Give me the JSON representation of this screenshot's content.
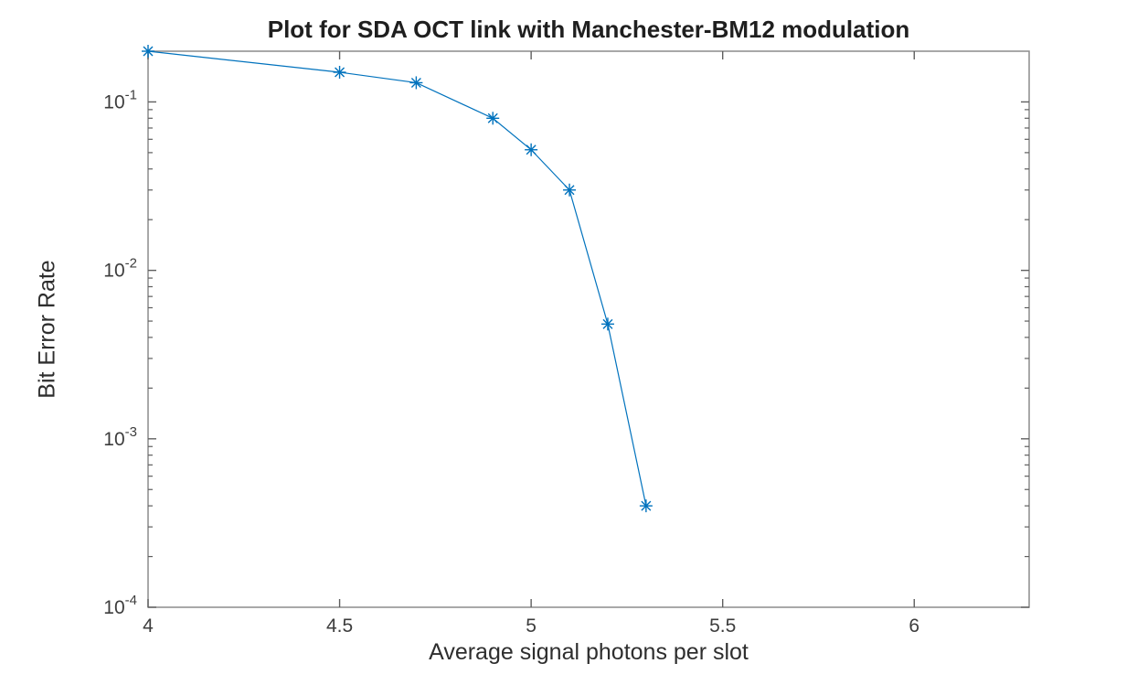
{
  "chart_data": {
    "type": "line",
    "title": "Plot for SDA OCT link with Manchester-BM12 modulation",
    "xlabel": "Average signal photons per slot",
    "ylabel": "Bit Error Rate",
    "x": [
      4,
      4.5,
      4.7,
      4.9,
      5,
      5.1,
      5.2,
      5.3
    ],
    "y": [
      0.2,
      0.15,
      0.13,
      0.08,
      0.052,
      0.03,
      0.0048,
      0.0004
    ],
    "series_name": "BER vs average signal photons per slot",
    "xlim": [
      4,
      6.3
    ],
    "ylim": [
      0.0001,
      0.2
    ],
    "xscale": "linear",
    "yscale": "log",
    "x_ticks": [
      4,
      4.5,
      5,
      5.5,
      6
    ],
    "x_tick_labels": [
      "4",
      "4.5",
      "5",
      "5.5",
      "6"
    ],
    "y_ticks": [
      0.1,
      0.01,
      0.001,
      0.0001
    ],
    "y_tick_label_base": "10",
    "y_tick_exponents": [
      "-1",
      "-2",
      "-3",
      "-4"
    ],
    "y_minor_ticks": true,
    "marker": "asterisk",
    "grid": false,
    "legend": null,
    "colors": {
      "line": "#0072BD",
      "marker": "#0072BD",
      "axis_box": "#8c8c8c",
      "tick_mark": "#5f5f5f",
      "tick_label": "#3d3d3d",
      "background": "#ffffff"
    }
  }
}
